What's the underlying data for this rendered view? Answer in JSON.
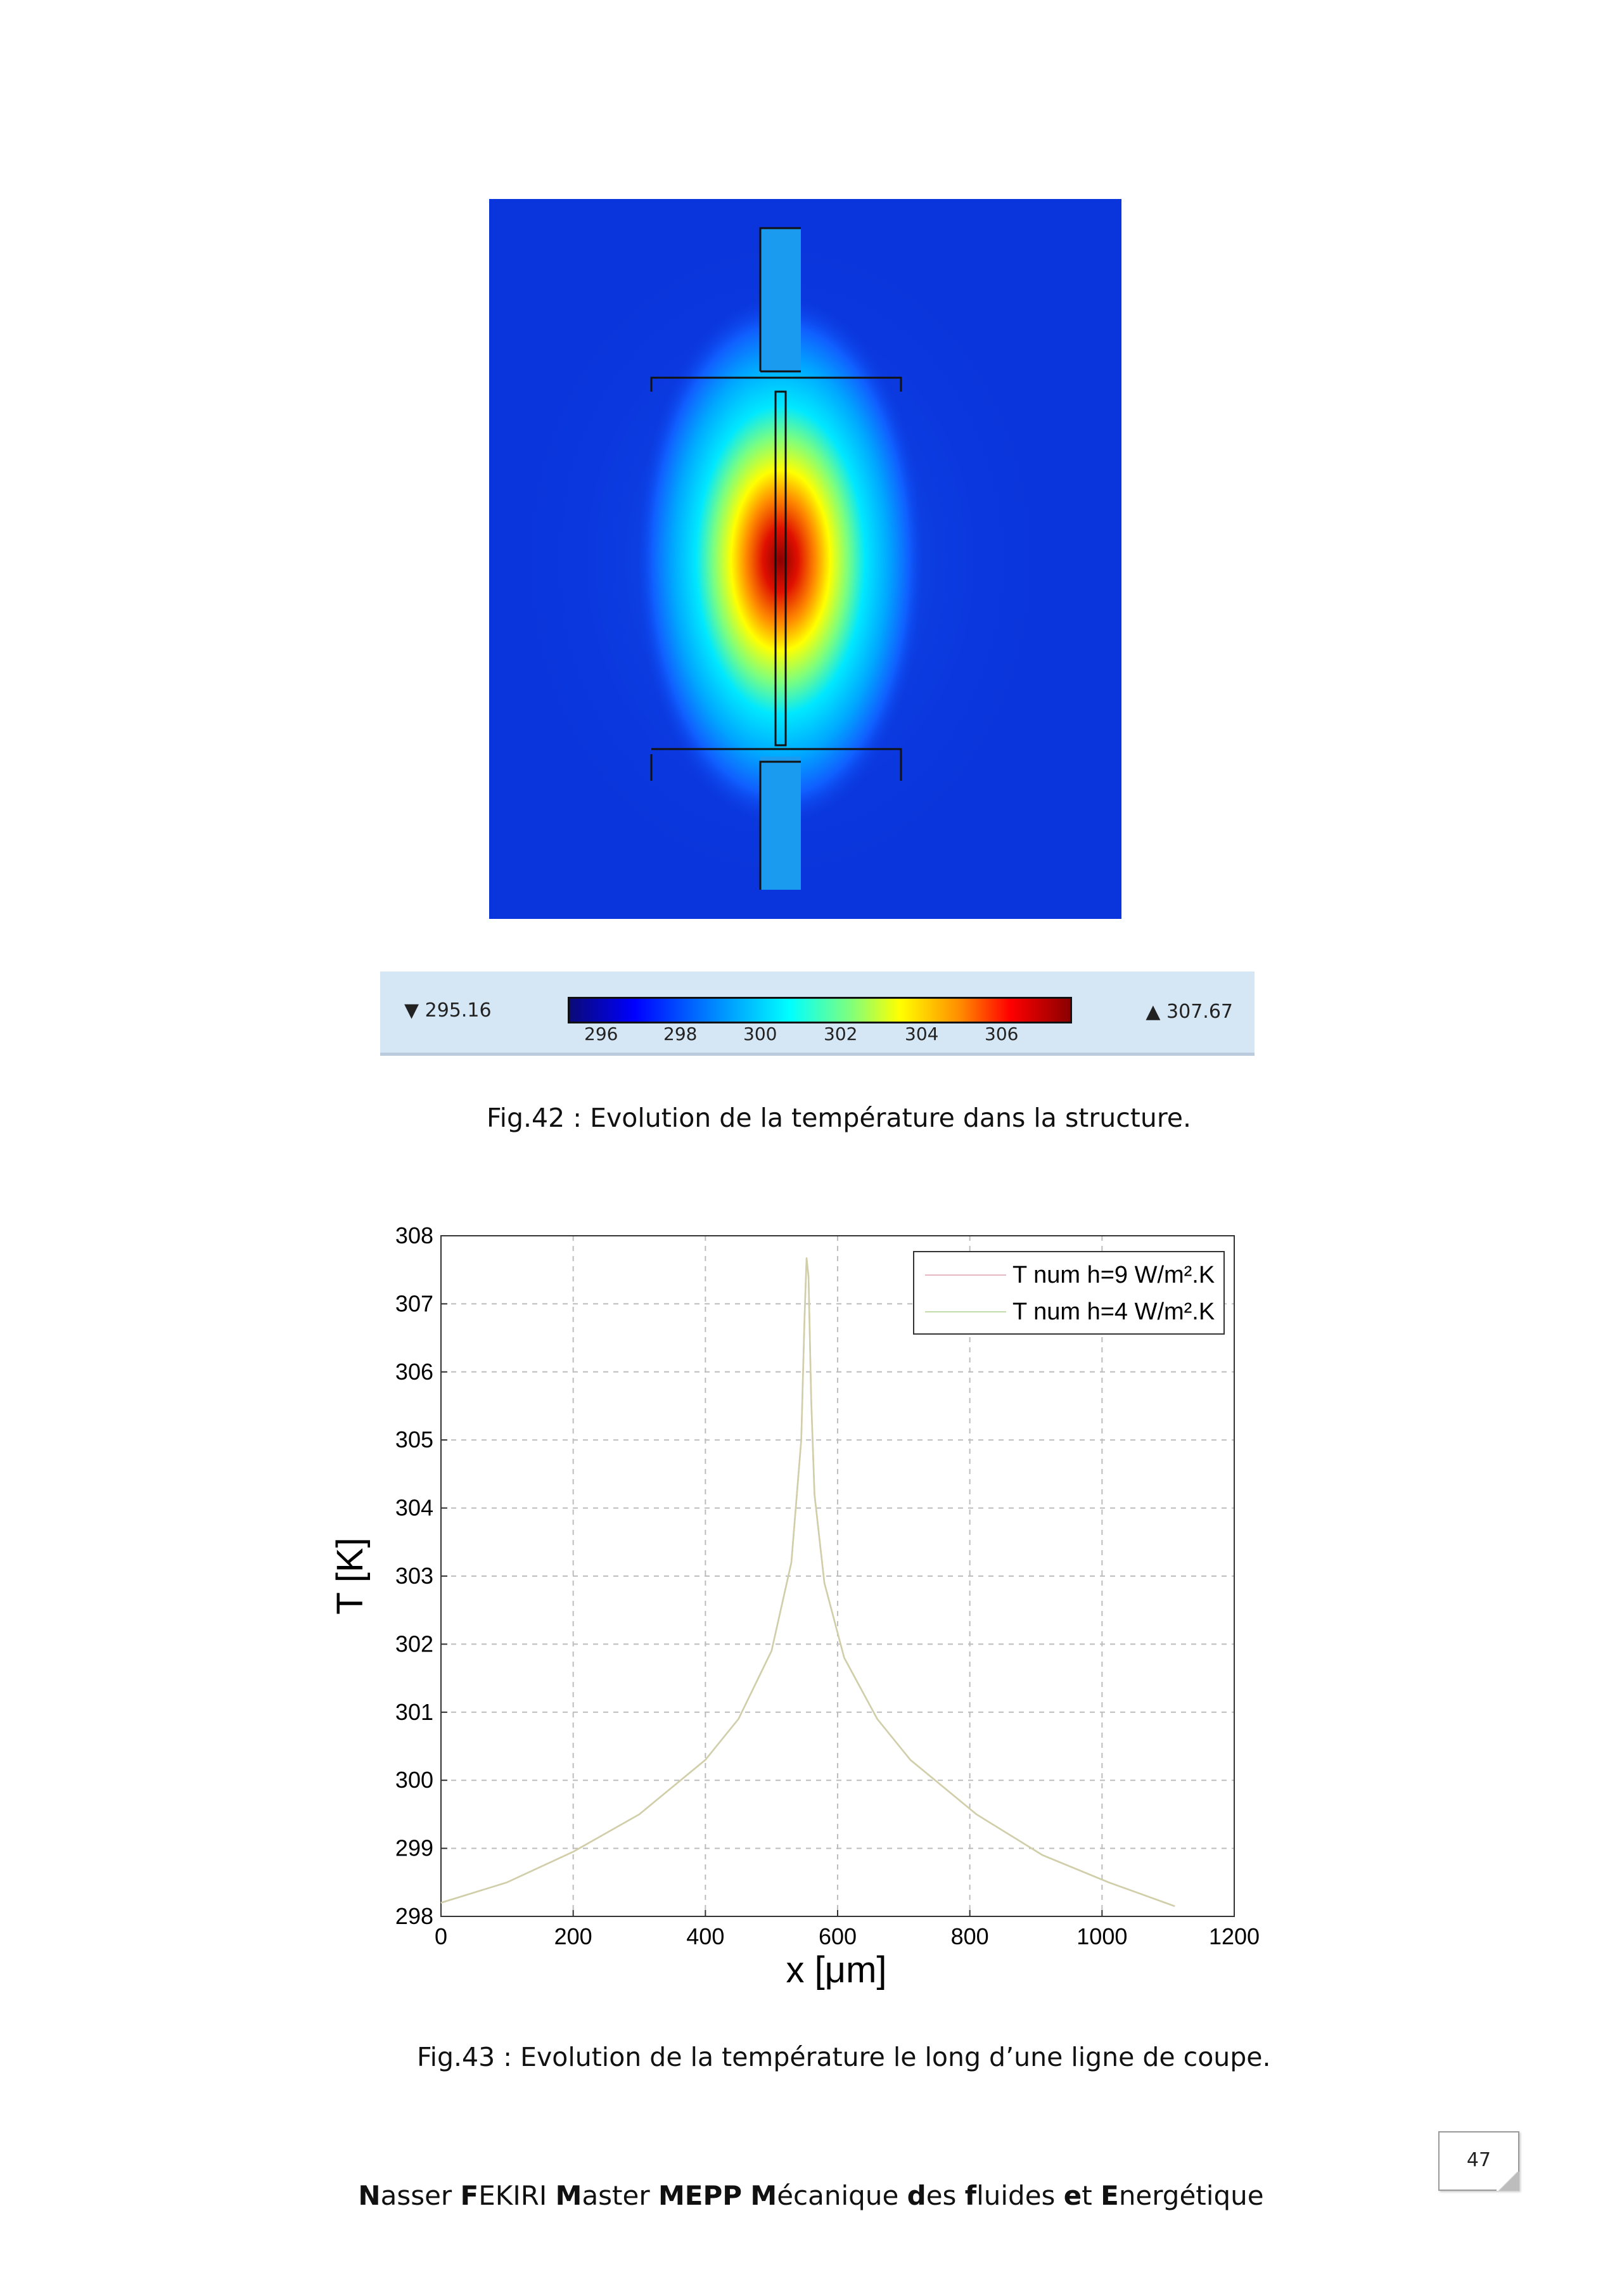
{
  "figure42": {
    "colorbar": {
      "min_label": "▼ 295.16",
      "max_label": "▲ 307.67",
      "ticks": [
        "296",
        "298",
        "300",
        "302",
        "304",
        "306"
      ]
    },
    "caption": "Fig.42 : Evolution de la température dans la structure."
  },
  "figure43": {
    "caption": "Fig.43 : Evolution de la température le long d’une ligne de coupe."
  },
  "chart_data": {
    "type": "line",
    "xlabel": "x [μm]",
    "ylabel": "T [K]",
    "xlim": [
      0,
      1200
    ],
    "ylim": [
      298,
      308
    ],
    "xticks": [
      "0",
      "200",
      "400",
      "600",
      "800",
      "1000",
      "1200"
    ],
    "yticks": [
      "298",
      "299",
      "300",
      "301",
      "302",
      "303",
      "304",
      "305",
      "306",
      "307",
      "308"
    ],
    "grid": true,
    "legend_position": "top-right",
    "series": [
      {
        "name": "T num h=9 W/m².K",
        "color": "#e8b7c4",
        "x": [
          0,
          100,
          200,
          300,
          400,
          450,
          500,
          530,
          545,
          550,
          553,
          556,
          560,
          565,
          580,
          610,
          660,
          710,
          810,
          910,
          1010,
          1110
        ],
        "y": [
          298.2,
          298.5,
          298.95,
          299.5,
          300.3,
          300.9,
          301.9,
          303.2,
          305.0,
          306.8,
          307.67,
          307.4,
          305.6,
          304.2,
          302.9,
          301.8,
          300.9,
          300.3,
          299.5,
          298.9,
          298.5,
          298.15
        ]
      },
      {
        "name": "T num h=4 W/m².K",
        "color": "#c4dcaa",
        "x": [
          0,
          100,
          200,
          300,
          400,
          450,
          500,
          530,
          545,
          550,
          553,
          556,
          560,
          565,
          580,
          610,
          660,
          710,
          810,
          910,
          1010,
          1110
        ],
        "y": [
          298.2,
          298.5,
          298.95,
          299.5,
          300.3,
          300.9,
          301.9,
          303.2,
          305.0,
          306.8,
          307.67,
          307.4,
          305.6,
          304.2,
          302.9,
          301.8,
          300.9,
          300.3,
          299.5,
          298.9,
          298.5,
          298.15
        ]
      }
    ],
    "line_color_shown": "#cfcfa8"
  },
  "page_number": "47",
  "footer": {
    "parts": [
      {
        "b": "N",
        "t": "asser "
      },
      {
        "b": "F",
        "t": "EKIRI "
      },
      {
        "b": "M",
        "t": "aster "
      },
      {
        "b": "MEPP",
        "t": " "
      },
      {
        "b": "M",
        "t": "écanique "
      },
      {
        "b": "d",
        "t": "es "
      },
      {
        "b": "f",
        "t": "luides "
      },
      {
        "b": "e",
        "t": "t "
      },
      {
        "b": "E",
        "t": "nergétique"
      }
    ]
  }
}
